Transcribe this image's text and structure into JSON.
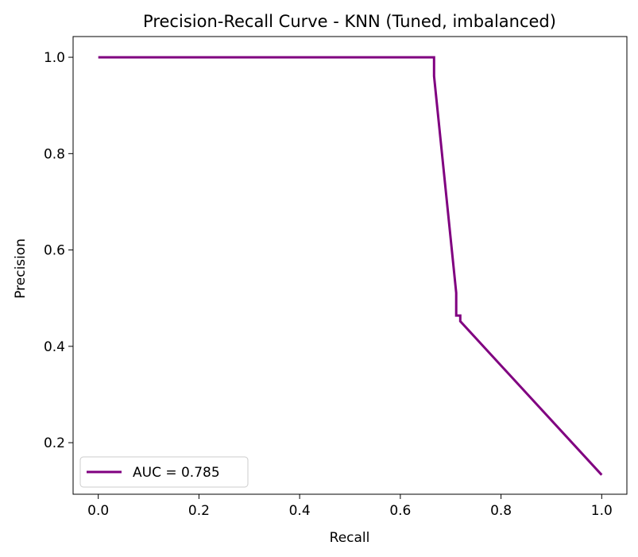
{
  "chart_data": {
    "type": "line",
    "title": "Precision-Recall Curve - KNN (Tuned, imbalanced)",
    "xlabel": "Recall",
    "ylabel": "Precision",
    "xlim": [
      -0.05,
      1.05
    ],
    "ylim": [
      0.093,
      1.043
    ],
    "xticks": [
      "0.0",
      "0.2",
      "0.4",
      "0.6",
      "0.8",
      "1.0"
    ],
    "yticks": [
      "0.2",
      "0.4",
      "0.6",
      "0.8",
      "1.0"
    ],
    "grid": false,
    "legend_position": "lower-left",
    "series": [
      {
        "name": "AUC = 0.785",
        "color": "#800080",
        "x": [
          0.0,
          0.667,
          0.667,
          0.667,
          0.711,
          0.711,
          0.711,
          0.711,
          0.719,
          0.719,
          0.719,
          1.0
        ],
        "y": [
          1.0,
          1.0,
          0.983,
          0.961,
          0.511,
          0.482,
          0.464,
          0.464,
          0.464,
          0.455,
          0.452,
          0.133
        ]
      }
    ]
  }
}
